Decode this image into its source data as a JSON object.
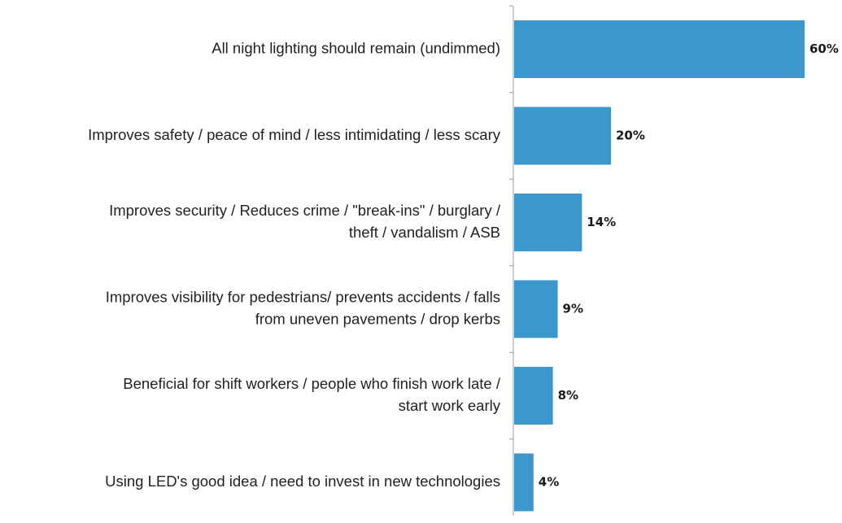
{
  "chart_data": {
    "type": "bar",
    "orientation": "horizontal",
    "categories": [
      [
        "All night lighting should remain (undimmed)"
      ],
      [
        "Improves safety  / peace of mind / less intimidating / less scary"
      ],
      [
        "Improves security / Reduces crime / \"break-ins\" / burglary /",
        "theft / vandalism / ASB"
      ],
      [
        "Improves visibility for pedestrians/ prevents accidents / falls",
        "from uneven pavements / drop kerbs"
      ],
      [
        "Beneficial for shift workers / people who finish work late /",
        "start work early"
      ],
      [
        "Using LED's good idea / need to invest in new technologies"
      ]
    ],
    "values": [
      60,
      20,
      14,
      9,
      8,
      4
    ],
    "value_labels": [
      "60%",
      "20%",
      "14%",
      "9%",
      "8%",
      "4%"
    ],
    "unit": "%",
    "xlim": [
      0,
      60
    ],
    "bar_color": "#3b97cc",
    "axis_color": "#999999",
    "grid": false,
    "legend": "none"
  }
}
